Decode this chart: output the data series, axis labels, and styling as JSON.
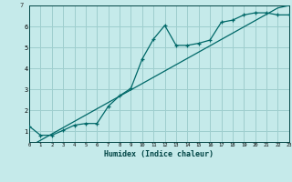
{
  "xlabel": "Humidex (Indice chaleur)",
  "bg_color": "#c5eaea",
  "grid_color": "#9ecece",
  "line_color": "#006868",
  "x_data": [
    0,
    1,
    2,
    3,
    4,
    5,
    6,
    7,
    8,
    9,
    10,
    11,
    12,
    13,
    14,
    15,
    16,
    17,
    18,
    19,
    20,
    21,
    22,
    23
  ],
  "y_curve": [
    1.25,
    0.82,
    0.82,
    1.05,
    1.3,
    1.38,
    1.38,
    2.2,
    2.7,
    3.05,
    4.45,
    5.4,
    6.05,
    5.1,
    5.1,
    5.2,
    5.35,
    6.2,
    6.3,
    6.55,
    6.65,
    6.65,
    6.55,
    6.55
  ],
  "y_line": [
    0.28,
    0.58,
    0.88,
    1.18,
    1.48,
    1.78,
    2.08,
    2.38,
    2.68,
    2.98,
    3.28,
    3.58,
    3.88,
    4.18,
    4.48,
    4.78,
    5.08,
    5.38,
    5.68,
    5.98,
    6.28,
    6.58,
    6.88,
    7.0
  ],
  "xlim": [
    0,
    23
  ],
  "ylim": [
    0.5,
    7.0
  ],
  "xticks": [
    0,
    1,
    2,
    3,
    4,
    5,
    6,
    7,
    8,
    9,
    10,
    11,
    12,
    13,
    14,
    15,
    16,
    17,
    18,
    19,
    20,
    21,
    22,
    23
  ],
  "yticks": [
    1,
    2,
    3,
    4,
    5,
    6
  ],
  "ytick_top_label": "7"
}
